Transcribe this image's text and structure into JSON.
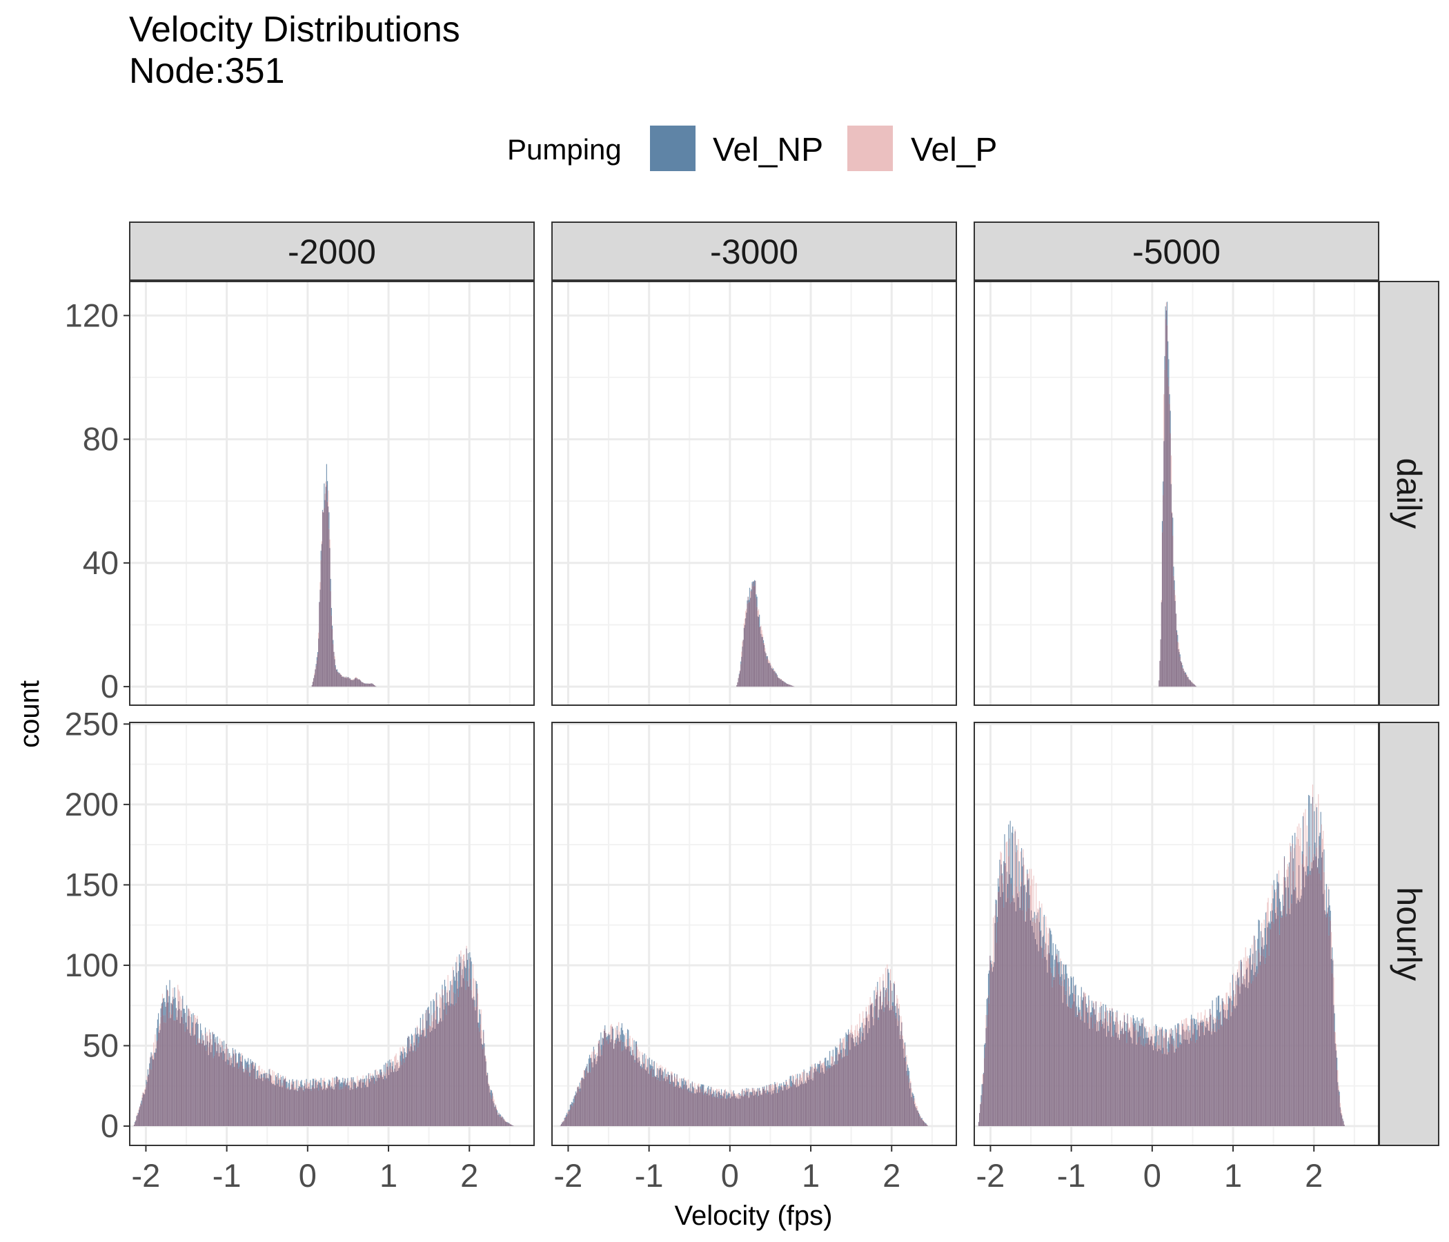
{
  "chart_data": {
    "type": "bar",
    "subtype": "faceted-histogram",
    "title": "Velocity Distributions",
    "subtitle": "Node:351",
    "xlabel": "Velocity (fps)",
    "ylabel": "count",
    "legend": {
      "title": "Pumping",
      "position": "top",
      "entries": [
        {
          "label": "Vel_NP",
          "color": "#5f84a6"
        },
        {
          "label": "Vel_P",
          "color": "#ebc0c0"
        }
      ]
    },
    "overlap_color": "#8f7a90",
    "facet_columns": [
      "-2000",
      "-3000",
      "-5000"
    ],
    "facet_rows": [
      "daily",
      "hourly"
    ],
    "xlim": [
      -2.2,
      2.8
    ],
    "xticks": [
      -2,
      -1,
      0,
      1,
      2
    ],
    "rows": {
      "daily": {
        "ylim": [
          -6,
          131
        ],
        "yticks": [
          0,
          40,
          80,
          120
        ]
      },
      "hourly": {
        "ylim": [
          -12,
          251
        ],
        "yticks": [
          0,
          50,
          100,
          150,
          200,
          250
        ]
      }
    },
    "grid": true,
    "bin_width": 0.01,
    "panels": [
      {
        "row": "daily",
        "col": "-2000",
        "anchors": [
          [
            0.05,
            0
          ],
          [
            0.07,
            2
          ],
          [
            0.1,
            6
          ],
          [
            0.13,
            12
          ],
          [
            0.15,
            30
          ],
          [
            0.17,
            46
          ],
          [
            0.19,
            55
          ],
          [
            0.21,
            64
          ],
          [
            0.23,
            67
          ],
          [
            0.25,
            62
          ],
          [
            0.27,
            50
          ],
          [
            0.29,
            28
          ],
          [
            0.31,
            16
          ],
          [
            0.33,
            10
          ],
          [
            0.35,
            6
          ],
          [
            0.4,
            4
          ],
          [
            0.45,
            3
          ],
          [
            0.5,
            3
          ],
          [
            0.55,
            2
          ],
          [
            0.6,
            3
          ],
          [
            0.65,
            2
          ],
          [
            0.7,
            1
          ],
          [
            0.8,
            1
          ],
          [
            0.85,
            0
          ]
        ]
      },
      {
        "row": "daily",
        "col": "-3000",
        "anchors": [
          [
            0.08,
            0
          ],
          [
            0.1,
            2
          ],
          [
            0.13,
            6
          ],
          [
            0.15,
            12
          ],
          [
            0.18,
            20
          ],
          [
            0.21,
            26
          ],
          [
            0.24,
            30
          ],
          [
            0.27,
            32
          ],
          [
            0.3,
            35
          ],
          [
            0.33,
            28
          ],
          [
            0.36,
            22
          ],
          [
            0.4,
            16
          ],
          [
            0.45,
            10
          ],
          [
            0.5,
            7
          ],
          [
            0.55,
            5
          ],
          [
            0.6,
            3
          ],
          [
            0.65,
            2
          ],
          [
            0.7,
            1
          ],
          [
            0.8,
            0
          ]
        ]
      },
      {
        "row": "daily",
        "col": "-5000",
        "anchors": [
          [
            0.08,
            0
          ],
          [
            0.09,
            4
          ],
          [
            0.11,
            20
          ],
          [
            0.13,
            60
          ],
          [
            0.15,
            95
          ],
          [
            0.17,
            118
          ],
          [
            0.19,
            112
          ],
          [
            0.21,
            96
          ],
          [
            0.23,
            78
          ],
          [
            0.25,
            55
          ],
          [
            0.27,
            34
          ],
          [
            0.3,
            20
          ],
          [
            0.33,
            12
          ],
          [
            0.37,
            7
          ],
          [
            0.42,
            4
          ],
          [
            0.47,
            2
          ],
          [
            0.55,
            0
          ]
        ]
      },
      {
        "row": "hourly",
        "col": "-2000",
        "anchors": [
          [
            -2.15,
            0
          ],
          [
            -2.1,
            8
          ],
          [
            -2.0,
            25
          ],
          [
            -1.9,
            48
          ],
          [
            -1.8,
            72
          ],
          [
            -1.7,
            80
          ],
          [
            -1.6,
            76
          ],
          [
            -1.5,
            68
          ],
          [
            -1.3,
            55
          ],
          [
            -1.1,
            48
          ],
          [
            -0.9,
            42
          ],
          [
            -0.7,
            36
          ],
          [
            -0.5,
            32
          ],
          [
            -0.3,
            28
          ],
          [
            -0.1,
            25
          ],
          [
            0.1,
            26
          ],
          [
            0.3,
            27
          ],
          [
            0.5,
            26
          ],
          [
            0.7,
            28
          ],
          [
            0.9,
            32
          ],
          [
            1.1,
            40
          ],
          [
            1.3,
            52
          ],
          [
            1.5,
            66
          ],
          [
            1.7,
            80
          ],
          [
            1.85,
            92
          ],
          [
            1.95,
            100
          ],
          [
            2.05,
            92
          ],
          [
            2.15,
            62
          ],
          [
            2.25,
            24
          ],
          [
            2.35,
            8
          ],
          [
            2.45,
            3
          ],
          [
            2.55,
            0
          ]
        ]
      },
      {
        "row": "hourly",
        "col": "-3000",
        "anchors": [
          [
            -2.1,
            0
          ],
          [
            -2.05,
            4
          ],
          [
            -1.95,
            14
          ],
          [
            -1.85,
            26
          ],
          [
            -1.7,
            42
          ],
          [
            -1.55,
            54
          ],
          [
            -1.4,
            58
          ],
          [
            -1.25,
            52
          ],
          [
            -1.1,
            42
          ],
          [
            -0.9,
            34
          ],
          [
            -0.7,
            29
          ],
          [
            -0.5,
            25
          ],
          [
            -0.3,
            22
          ],
          [
            -0.1,
            20
          ],
          [
            0.1,
            20
          ],
          [
            0.3,
            21
          ],
          [
            0.5,
            23
          ],
          [
            0.7,
            26
          ],
          [
            0.9,
            30
          ],
          [
            1.1,
            36
          ],
          [
            1.3,
            44
          ],
          [
            1.5,
            54
          ],
          [
            1.7,
            66
          ],
          [
            1.85,
            80
          ],
          [
            1.95,
            88
          ],
          [
            2.05,
            78
          ],
          [
            2.15,
            50
          ],
          [
            2.25,
            20
          ],
          [
            2.35,
            6
          ],
          [
            2.45,
            0
          ]
        ]
      },
      {
        "row": "hourly",
        "col": "-5000",
        "anchors": [
          [
            -2.15,
            0
          ],
          [
            -2.1,
            25
          ],
          [
            -2.05,
            70
          ],
          [
            -1.95,
            120
          ],
          [
            -1.85,
            158
          ],
          [
            -1.75,
            165
          ],
          [
            -1.65,
            155
          ],
          [
            -1.5,
            140
          ],
          [
            -1.35,
            118
          ],
          [
            -1.2,
            98
          ],
          [
            -1.0,
            82
          ],
          [
            -0.8,
            72
          ],
          [
            -0.6,
            66
          ],
          [
            -0.4,
            62
          ],
          [
            -0.2,
            60
          ],
          [
            0.0,
            56
          ],
          [
            0.2,
            52
          ],
          [
            0.4,
            58
          ],
          [
            0.6,
            62
          ],
          [
            0.8,
            70
          ],
          [
            1.0,
            82
          ],
          [
            1.2,
            100
          ],
          [
            1.4,
            120
          ],
          [
            1.55,
            138
          ],
          [
            1.7,
            155
          ],
          [
            1.85,
            168
          ],
          [
            1.95,
            185
          ],
          [
            2.05,
            180
          ],
          [
            2.15,
            150
          ],
          [
            2.22,
            110
          ],
          [
            2.28,
            40
          ],
          [
            2.33,
            10
          ],
          [
            2.38,
            0
          ]
        ]
      }
    ]
  }
}
